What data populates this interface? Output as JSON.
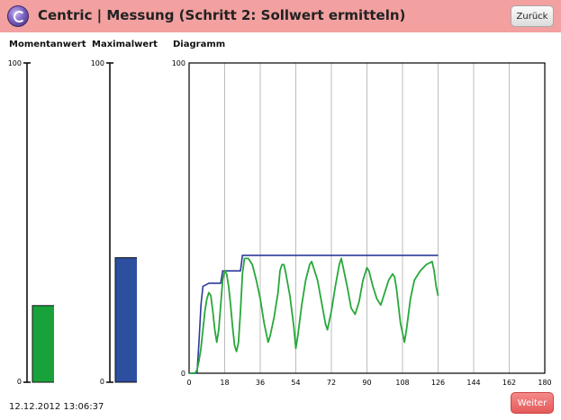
{
  "header": {
    "title": "Centric | Messung (Schritt 2: Sollwert ermitteln)",
    "back_label": "Zurück"
  },
  "momentan": {
    "label": "Momentanwert",
    "max": "100",
    "min": "0",
    "value": 24,
    "color": "#1aa23a"
  },
  "maximal": {
    "label": "Maximalwert",
    "max": "100",
    "min": "0",
    "value": 39,
    "color": "#2d4fa0"
  },
  "diagram_label": "Diagramm",
  "chart_data": {
    "type": "line",
    "x_ticks": [
      "0",
      "18",
      "36",
      "54",
      "72",
      "90",
      "108",
      "126",
      "144",
      "162",
      "180"
    ],
    "y_tick_labels": [
      "0",
      "100"
    ],
    "xlim": [
      0,
      180
    ],
    "ylim": [
      0,
      100
    ],
    "grid": true,
    "series": [
      {
        "color": "#2d3a9a",
        "points": [
          [
            0,
            0
          ],
          [
            4,
            0
          ],
          [
            5,
            10
          ],
          [
            6,
            22
          ],
          [
            7,
            28
          ],
          [
            10,
            29
          ],
          [
            12,
            29
          ],
          [
            16,
            29
          ],
          [
            17,
            33
          ],
          [
            26,
            33
          ],
          [
            27,
            38
          ],
          [
            126,
            38
          ]
        ]
      },
      {
        "color": "#27a83a",
        "points": [
          [
            0,
            0
          ],
          [
            3,
            0
          ],
          [
            4,
            1
          ],
          [
            5,
            4
          ],
          [
            6,
            8
          ],
          [
            7,
            14
          ],
          [
            8,
            20
          ],
          [
            9,
            24
          ],
          [
            10,
            26
          ],
          [
            11,
            25
          ],
          [
            12,
            20
          ],
          [
            13,
            14
          ],
          [
            14,
            10
          ],
          [
            15,
            14
          ],
          [
            16,
            22
          ],
          [
            17,
            30
          ],
          [
            18,
            33
          ],
          [
            19,
            32
          ],
          [
            20,
            28
          ],
          [
            21,
            22
          ],
          [
            22,
            15
          ],
          [
            23,
            9
          ],
          [
            24,
            7
          ],
          [
            25,
            10
          ],
          [
            26,
            20
          ],
          [
            27,
            32
          ],
          [
            28,
            37
          ],
          [
            30,
            37
          ],
          [
            32,
            35
          ],
          [
            34,
            30
          ],
          [
            36,
            24
          ],
          [
            38,
            16
          ],
          [
            40,
            10
          ],
          [
            41,
            12
          ],
          [
            43,
            18
          ],
          [
            45,
            26
          ],
          [
            46,
            33
          ],
          [
            47,
            35
          ],
          [
            48,
            35
          ],
          [
            49,
            32
          ],
          [
            51,
            25
          ],
          [
            53,
            15
          ],
          [
            54,
            8
          ],
          [
            55,
            12
          ],
          [
            57,
            22
          ],
          [
            59,
            30
          ],
          [
            61,
            35
          ],
          [
            62,
            36
          ],
          [
            63,
            34
          ],
          [
            65,
            30
          ],
          [
            67,
            23
          ],
          [
            69,
            16
          ],
          [
            70,
            14
          ],
          [
            72,
            20
          ],
          [
            74,
            28
          ],
          [
            76,
            35
          ],
          [
            77,
            37
          ],
          [
            78,
            34
          ],
          [
            80,
            28
          ],
          [
            82,
            21
          ],
          [
            84,
            19
          ],
          [
            86,
            23
          ],
          [
            88,
            30
          ],
          [
            90,
            34
          ],
          [
            91,
            33
          ],
          [
            93,
            28
          ],
          [
            95,
            24
          ],
          [
            97,
            22
          ],
          [
            99,
            26
          ],
          [
            101,
            30
          ],
          [
            103,
            32
          ],
          [
            104,
            31
          ],
          [
            105,
            27
          ],
          [
            107,
            16
          ],
          [
            109,
            10
          ],
          [
            110,
            14
          ],
          [
            112,
            24
          ],
          [
            114,
            30
          ],
          [
            117,
            33
          ],
          [
            120,
            35
          ],
          [
            123,
            36
          ],
          [
            124,
            33
          ],
          [
            125,
            28
          ],
          [
            126,
            25
          ]
        ]
      }
    ]
  },
  "footer": {
    "timestamp": "12.12.2012 13:06:37",
    "next_label": "Weiter"
  }
}
